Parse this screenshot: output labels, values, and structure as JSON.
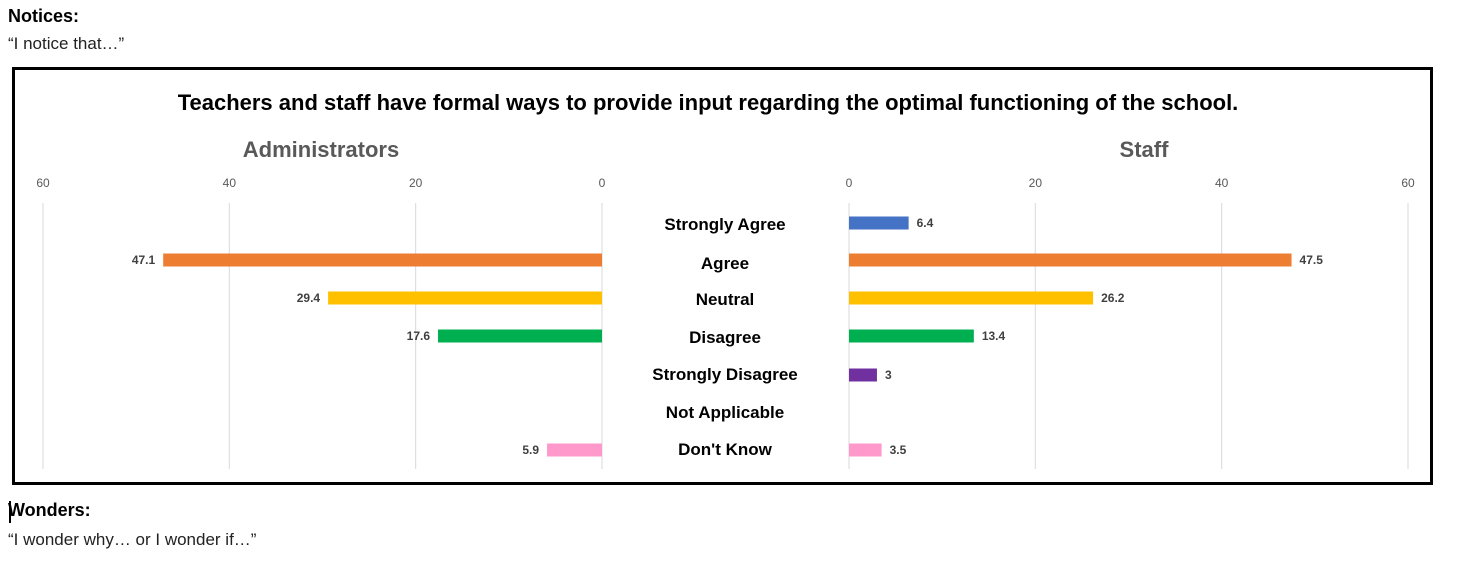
{
  "notices": {
    "heading": "Notices:",
    "prompt": "“I notice that…”"
  },
  "wonders": {
    "heading": "Wonders:",
    "prompt": "“I wonder why… or I wonder if…”"
  },
  "chart_data": {
    "type": "bar",
    "orientation": "horizontal",
    "layout": "butterfly",
    "title": "Teachers and staff have formal ways to provide input regarding the optimal functioning of the school.",
    "categories": [
      "Strongly Agree",
      "Agree",
      "Neutral",
      "Disagree",
      "Strongly Disagree",
      "Not Applicable",
      "Don't Know"
    ],
    "category_colors": [
      "#4472C4",
      "#ED7D31",
      "#FFC000",
      "#00B050",
      "#7030A0",
      "#A5A5A5",
      "#FF99CC"
    ],
    "grid": true,
    "panels": [
      {
        "name": "Administrators",
        "direction": "reversed",
        "xlim": [
          0,
          60
        ],
        "ticks": [
          60,
          40,
          20,
          0
        ],
        "values": [
          null,
          47.1,
          29.4,
          17.6,
          null,
          null,
          5.9
        ],
        "labels": [
          "",
          "47.1",
          "29.4",
          "17.6",
          "",
          "",
          "5.9"
        ]
      },
      {
        "name": "Staff",
        "direction": "normal",
        "xlim": [
          0,
          60
        ],
        "ticks": [
          0,
          20,
          40,
          60
        ],
        "values": [
          6.4,
          47.5,
          26.2,
          13.4,
          3,
          null,
          3.5
        ],
        "labels": [
          "6.4",
          "47.5",
          "26.2",
          "13.4",
          "3",
          "",
          "3.5"
        ]
      }
    ]
  }
}
